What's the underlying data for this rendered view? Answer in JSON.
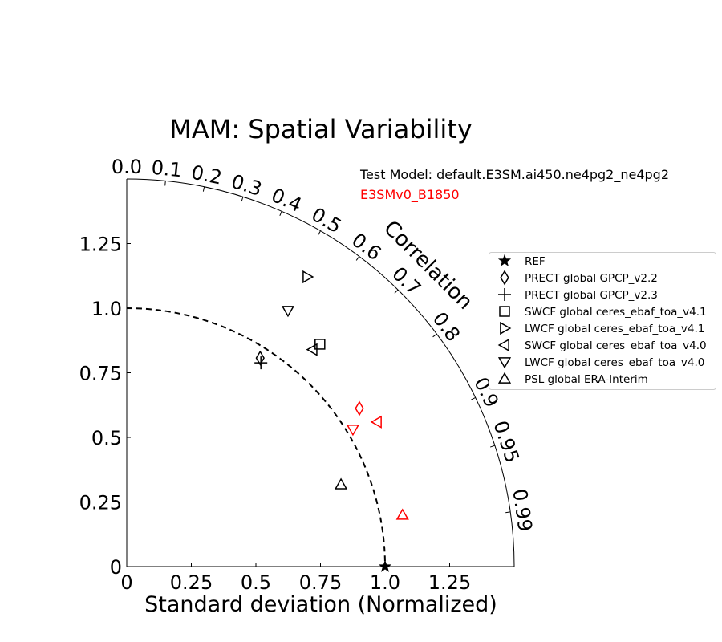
{
  "chart_data": {
    "type": "scatter",
    "subtype": "taylor-diagram",
    "title": "MAM: Spatial Variability",
    "xlabel": "Standard deviation (Normalized)",
    "corr_label": "Correlation",
    "std_max": 1.5,
    "std_ticks": [
      0,
      0.25,
      0.5,
      0.75,
      1.0,
      1.25
    ],
    "std_tick_labels": [
      "0",
      "0.25",
      "0.5",
      "0.75",
      "1.0",
      "1.25"
    ],
    "corr_ticks": [
      0.0,
      0.1,
      0.2,
      0.3,
      0.4,
      0.5,
      0.6,
      0.7,
      0.8,
      0.9,
      0.95,
      0.99
    ],
    "corr_tick_labels": [
      "0.0",
      "0.1",
      "0.2",
      "0.3",
      "0.4",
      "0.5",
      "0.6",
      "0.7",
      "0.8",
      "0.9",
      "0.95",
      "0.99"
    ],
    "ref_std": 1.0,
    "test_model_label": "Test Model: default.E3SM.ai450.ne4pg2_ne4pg2",
    "models": [
      {
        "name": "default.E3SM.ai450.ne4pg2_ne4pg2",
        "color": "#000000"
      },
      {
        "name": "E3SMv0_B1850",
        "color": "#ff0000"
      }
    ],
    "legend": {
      "placement": "right",
      "entries": [
        {
          "marker": "star",
          "label": "REF"
        },
        {
          "marker": "diamond",
          "label": "PRECT global GPCP_v2.2"
        },
        {
          "marker": "plus",
          "label": "PRECT global GPCP_v2.3"
        },
        {
          "marker": "square",
          "label": "SWCF global ceres_ebaf_toa_v4.1"
        },
        {
          "marker": "tri-right",
          "label": "LWCF global ceres_ebaf_toa_v4.1"
        },
        {
          "marker": "tri-left",
          "label": "SWCF global ceres_ebaf_toa_v4.0"
        },
        {
          "marker": "tri-down",
          "label": "LWCF global ceres_ebaf_toa_v4.0"
        },
        {
          "marker": "tri-up",
          "label": "PSL global ERA-Interim"
        }
      ]
    },
    "points": [
      {
        "model": 0,
        "marker": "star",
        "std": 1.0,
        "corr": 1.0
      },
      {
        "model": 0,
        "marker": "diamond",
        "std": 0.958,
        "corr": 0.539
      },
      {
        "model": 0,
        "marker": "plus",
        "std": 0.944,
        "corr": 0.55
      },
      {
        "model": 0,
        "marker": "square",
        "std": 1.14,
        "corr": 0.656
      },
      {
        "model": 0,
        "marker": "tri-right",
        "std": 1.321,
        "corr": 0.529
      },
      {
        "model": 0,
        "marker": "tri-left",
        "std": 1.106,
        "corr": 0.651
      },
      {
        "model": 0,
        "marker": "tri-down",
        "std": 1.171,
        "corr": 0.533
      },
      {
        "model": 0,
        "marker": "tri-up",
        "std": 0.888,
        "corr": 0.934
      },
      {
        "model": 1,
        "marker": "diamond",
        "std": 1.089,
        "corr": 0.827
      },
      {
        "model": 1,
        "marker": "tri-left",
        "std": 1.119,
        "corr": 0.866
      },
      {
        "model": 1,
        "marker": "tri-down",
        "std": 1.024,
        "corr": 0.855
      },
      {
        "model": 1,
        "marker": "tri-up",
        "std": 1.086,
        "corr": 0.983
      }
    ]
  }
}
